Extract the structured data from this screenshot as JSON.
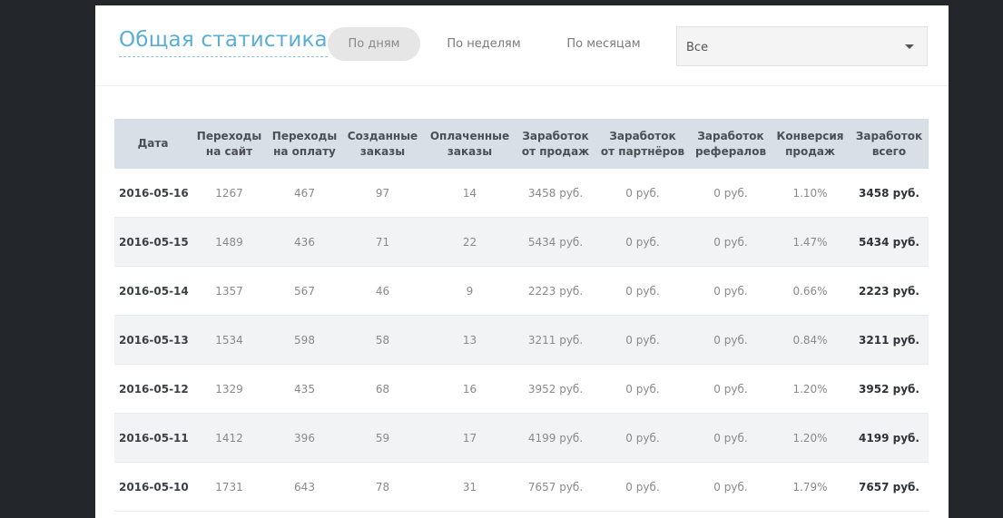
{
  "header": {
    "title": "Общая статистика",
    "tabs": {
      "days": "По дням",
      "weeks": "По неделям",
      "months": "По месяцам"
    },
    "active_tab": "days",
    "filter": {
      "selected": "Все"
    }
  },
  "table": {
    "columns": [
      {
        "line1": "Дата",
        "line2": ""
      },
      {
        "line1": "Переходы",
        "line2": "на сайт"
      },
      {
        "line1": "Переходы",
        "line2": "на оплату"
      },
      {
        "line1": "Созданные",
        "line2": "заказы"
      },
      {
        "line1": "Оплаченные",
        "line2": "заказы"
      },
      {
        "line1": "Заработок",
        "line2": "от продаж"
      },
      {
        "line1": "Заработок",
        "line2": "от партнёров"
      },
      {
        "line1": "Заработок",
        "line2": "рефералов"
      },
      {
        "line1": "Конверсия",
        "line2": "продаж"
      },
      {
        "line1": "Заработок",
        "line2": "всего"
      }
    ],
    "rows": [
      [
        "2016-05-16",
        "1267",
        "467",
        "97",
        "14",
        "3458 руб.",
        "0 руб.",
        "0 руб.",
        "1.10%",
        "3458 руб."
      ],
      [
        "2016-05-15",
        "1489",
        "436",
        "71",
        "22",
        "5434 руб.",
        "0 руб.",
        "0 руб.",
        "1.47%",
        "5434 руб."
      ],
      [
        "2016-05-14",
        "1357",
        "567",
        "46",
        "9",
        "2223 руб.",
        "0 руб.",
        "0 руб.",
        "0.66%",
        "2223 руб."
      ],
      [
        "2016-05-13",
        "1534",
        "598",
        "58",
        "13",
        "3211 руб.",
        "0 руб.",
        "0 руб.",
        "0.84%",
        "3211 руб."
      ],
      [
        "2016-05-12",
        "1329",
        "435",
        "68",
        "16",
        "3952 руб.",
        "0 руб.",
        "0 руб.",
        "1.20%",
        "3952 руб."
      ],
      [
        "2016-05-11",
        "1412",
        "396",
        "59",
        "17",
        "4199 руб.",
        "0 руб.",
        "0 руб.",
        "1.20%",
        "4199 руб."
      ],
      [
        "2016-05-10",
        "1731",
        "643",
        "78",
        "31",
        "7657 руб.",
        "0 руб.",
        "0 руб.",
        "1.79%",
        "7657 руб."
      ]
    ]
  },
  "colors": {
    "accent": "#5aaed6",
    "header_bg": "#d9dfe6",
    "page_bg": "#23262b"
  }
}
